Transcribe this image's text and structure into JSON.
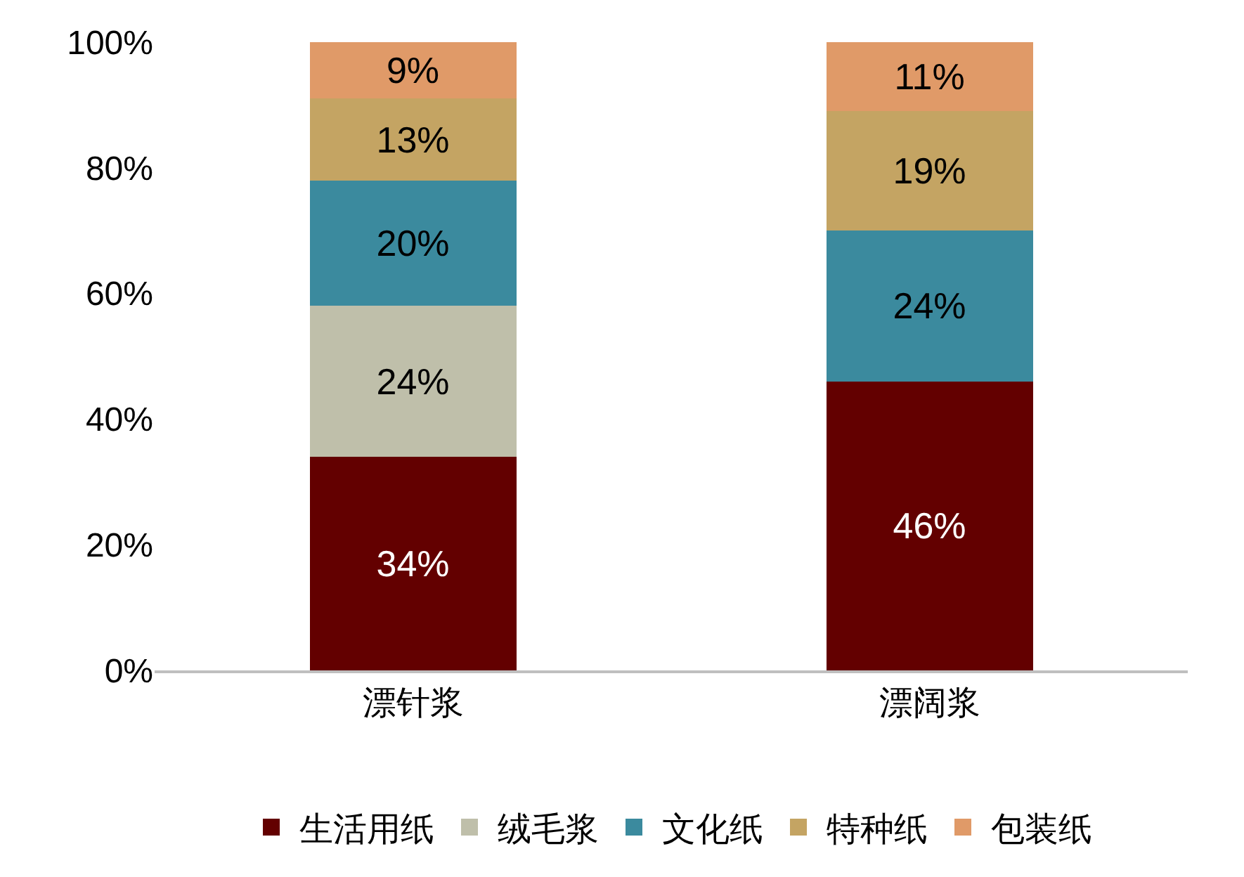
{
  "chart_data": {
    "type": "bar",
    "stacked": true,
    "categories": [
      "漂针浆",
      "漂阔浆"
    ],
    "series": [
      {
        "name": "生活用纸",
        "color": "#630000",
        "values": [
          34,
          46
        ],
        "value_labels": [
          "34%",
          "46%"
        ]
      },
      {
        "name": "绒毛浆",
        "color": "#bfbfaa",
        "values": [
          24,
          null
        ],
        "value_labels": [
          "24%",
          null
        ]
      },
      {
        "name": "文化纸",
        "color": "#3b8a9e",
        "values": [
          20,
          24
        ],
        "value_labels": [
          "20%",
          "24%"
        ]
      },
      {
        "name": "特种纸",
        "color": "#c4a463",
        "values": [
          13,
          19
        ],
        "value_labels": [
          "13%",
          "19%"
        ]
      },
      {
        "name": "包装纸",
        "color": "#e09a68",
        "values": [
          9,
          11
        ],
        "value_labels": [
          "9%",
          "11%"
        ]
      }
    ],
    "ylim": [
      0,
      100
    ],
    "yticks": [
      {
        "value": 0,
        "label": "0%"
      },
      {
        "value": 20,
        "label": "20%"
      },
      {
        "value": 40,
        "label": "40%"
      },
      {
        "value": 60,
        "label": "60%"
      },
      {
        "value": 80,
        "label": "80%"
      },
      {
        "value": 100,
        "label": "100%"
      }
    ],
    "grid": false,
    "legend": "bottom"
  }
}
